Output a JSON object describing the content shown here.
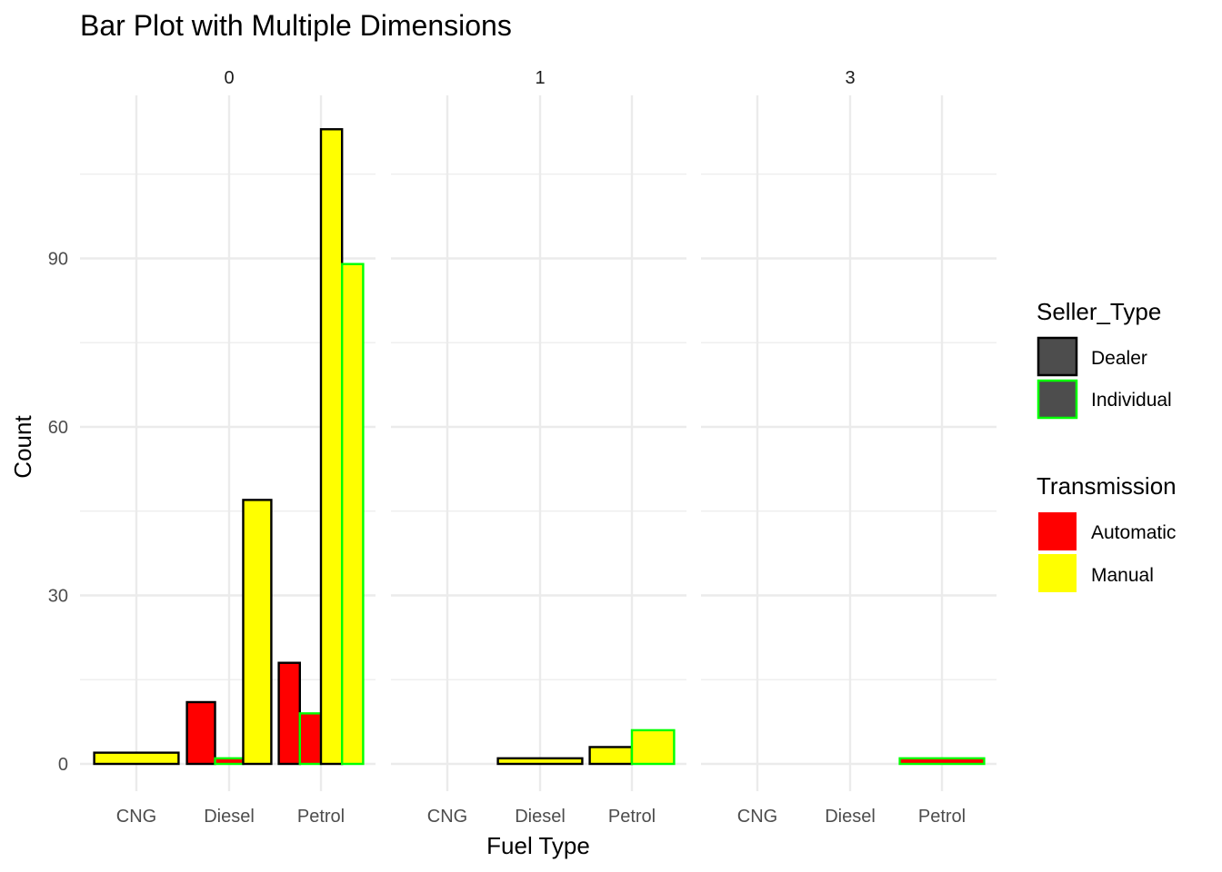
{
  "chart_data": {
    "type": "bar",
    "title": "Bar Plot with Multiple Dimensions",
    "xlabel": "Fuel Type",
    "ylabel": "Count",
    "ylim": [
      -6,
      122
    ],
    "yticks": [
      0,
      30,
      60,
      90
    ],
    "categories": [
      "CNG",
      "Diesel",
      "Petrol"
    ],
    "facets": [
      "0",
      "1",
      "3"
    ],
    "grid": true,
    "legend_position": "right",
    "bar_groups": [
      {
        "facet": "0",
        "category": "CNG",
        "bars": [
          {
            "transmission": "Manual",
            "seller": "Dealer",
            "value": 2
          }
        ]
      },
      {
        "facet": "0",
        "category": "Diesel",
        "bars": [
          {
            "transmission": "Automatic",
            "seller": "Dealer",
            "value": 11
          },
          {
            "transmission": "Automatic",
            "seller": "Individual",
            "value": 1
          },
          {
            "transmission": "Manual",
            "seller": "Dealer",
            "value": 47
          }
        ]
      },
      {
        "facet": "0",
        "category": "Petrol",
        "bars": [
          {
            "transmission": "Automatic",
            "seller": "Dealer",
            "value": 18
          },
          {
            "transmission": "Automatic",
            "seller": "Individual",
            "value": 9
          },
          {
            "transmission": "Manual",
            "seller": "Dealer",
            "value": 113
          },
          {
            "transmission": "Manual",
            "seller": "Individual",
            "value": 89
          }
        ]
      },
      {
        "facet": "1",
        "category": "Diesel",
        "bars": [
          {
            "transmission": "Manual",
            "seller": "Dealer",
            "value": 1
          }
        ]
      },
      {
        "facet": "1",
        "category": "Petrol",
        "bars": [
          {
            "transmission": "Manual",
            "seller": "Dealer",
            "value": 3
          },
          {
            "transmission": "Manual",
            "seller": "Individual",
            "value": 6
          }
        ]
      },
      {
        "facet": "3",
        "category": "Petrol",
        "bars": [
          {
            "transmission": "Automatic",
            "seller": "Individual",
            "value": 1
          }
        ]
      }
    ],
    "legend": {
      "seller_title": "Seller_Type",
      "seller_items": [
        {
          "label": "Dealer",
          "outline": "#000000"
        },
        {
          "label": "Individual",
          "outline": "#00ff00"
        }
      ],
      "transmission_title": "Transmission",
      "transmission_items": [
        {
          "label": "Automatic",
          "fill": "#ff0000"
        },
        {
          "label": "Manual",
          "fill": "#ffff00"
        }
      ]
    },
    "colors": {
      "Automatic": "#ff0000",
      "Manual": "#ffff00",
      "Dealer": "#000000",
      "Individual": "#00ff00",
      "legend_key_fill": "#4d4d4d",
      "grid": "#ebebeb"
    }
  }
}
